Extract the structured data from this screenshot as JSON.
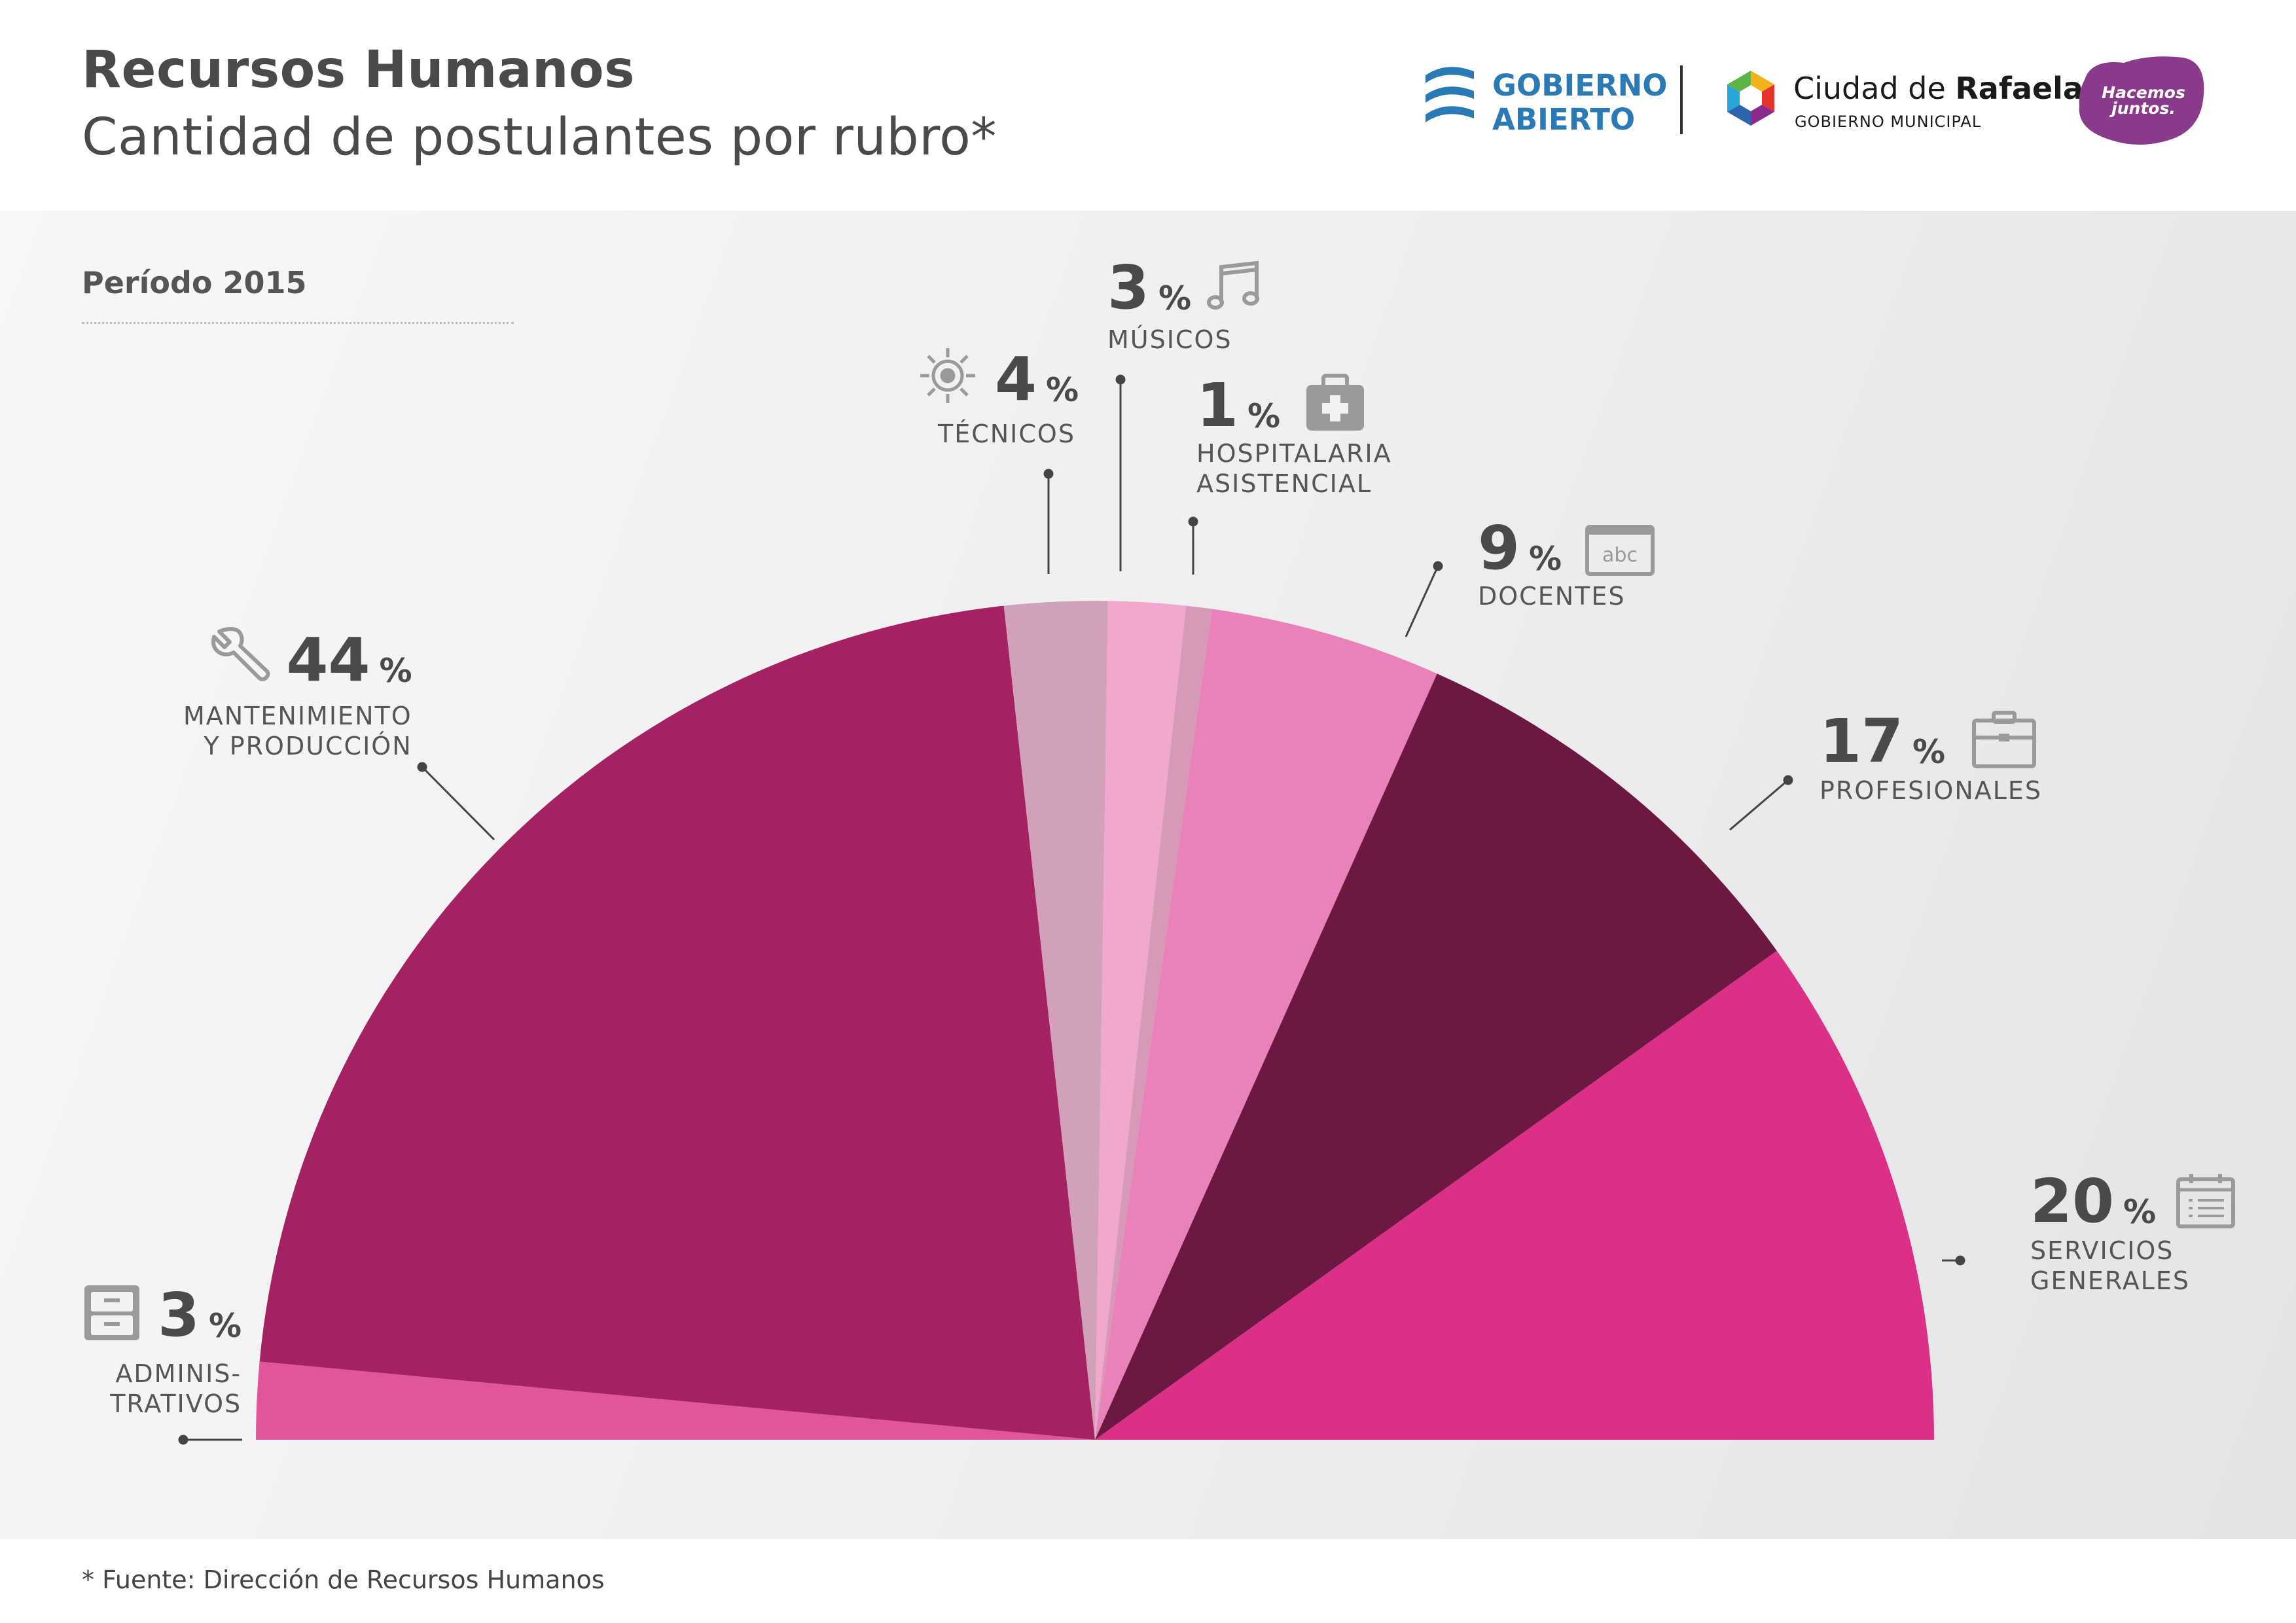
{
  "header": {
    "title": "Recursos Humanos",
    "subtitle": "Cantidad de postulantes por rubro*"
  },
  "logos": {
    "gobierno_abierto_line1": "GOBIERNO",
    "gobierno_abierto_line2": "ABIERTO",
    "ciudad_prefix": "Ciudad de ",
    "ciudad_bold": "Rafaela",
    "ciudad_sub": "GOBIERNO MUNICIPAL",
    "hacemos_line1": "Hacemos",
    "hacemos_line2": "juntos.",
    "colors": {
      "gobierno_abierto": "#2a7ab5",
      "hacemos_juntos": "#8a3a8a"
    }
  },
  "period": "Período 2015",
  "footer": "* Fuente: Dirección de Recursos Humanos",
  "chart_data": {
    "type": "pie",
    "shape": "semicircle",
    "unit": "%",
    "slices": [
      {
        "label": "ADMINIS-TRATIVOS",
        "value": 3,
        "color": "#e0569a",
        "icon": "filing-cabinet-icon"
      },
      {
        "label": "MANTENIMIENTO Y PRODUCCIÓN",
        "value": 44,
        "color": "#a52262",
        "icon": "wrench-icon"
      },
      {
        "label": "TÉCNICOS",
        "value": 4,
        "color": "#d1a0b9",
        "icon": "gear-icon"
      },
      {
        "label": "MÚSICOS",
        "value": 3,
        "color": "#f0a8ce",
        "icon": "music-note-icon"
      },
      {
        "label": "HOSPITALARIA ASISTENCIAL",
        "value": 1,
        "color": "#d69ab8",
        "icon": "medical-kit-icon"
      },
      {
        "label": "DOCENTES",
        "value": 9,
        "color": "#e982b8",
        "icon": "abc-board-icon"
      },
      {
        "label": "PROFESIONALES",
        "value": 17,
        "color": "#6d1842",
        "icon": "briefcase-icon"
      },
      {
        "label": "SERVICIOS GENERALES",
        "value": 20,
        "color": "#dc2f86",
        "icon": "calendar-list-icon"
      }
    ]
  },
  "labels": [
    {
      "pct": "3",
      "sign": "%",
      "name1": "ADMINIS-",
      "name2": "TRATIVOS"
    },
    {
      "pct": "44",
      "sign": "%",
      "name1": "MANTENIMIENTO",
      "name2": "Y PRODUCCIÓN"
    },
    {
      "pct": "4",
      "sign": "%",
      "name1": "TÉCNICOS"
    },
    {
      "pct": "3",
      "sign": "%",
      "name1": "MÚSICOS"
    },
    {
      "pct": "1",
      "sign": "%",
      "name1": "HOSPITALARIA",
      "name2": "ASISTENCIAL"
    },
    {
      "pct": "9",
      "sign": "%",
      "name1": "DOCENTES"
    },
    {
      "pct": "17",
      "sign": "%",
      "name1": "PROFESIONALES"
    },
    {
      "pct": "20",
      "sign": "%",
      "name1": "SERVICIOS",
      "name2": "GENERALES"
    }
  ]
}
